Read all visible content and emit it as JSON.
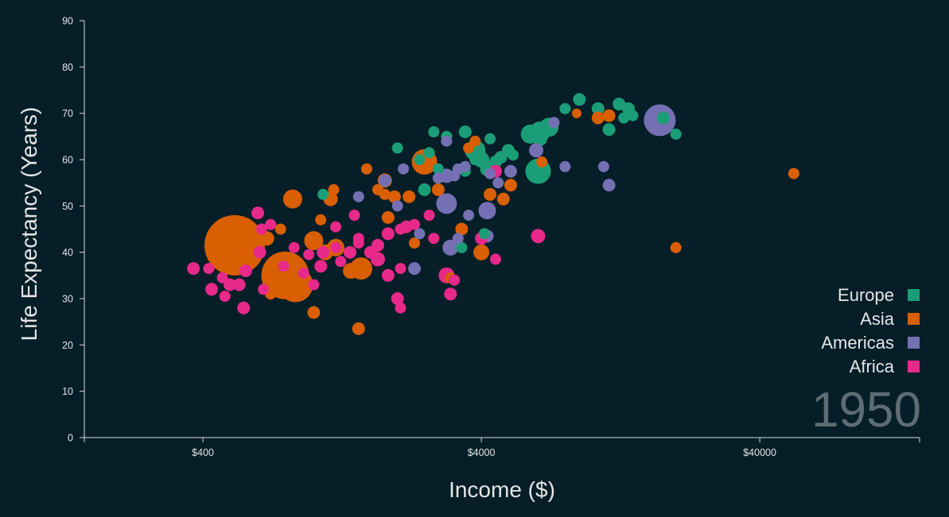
{
  "chart_data": {
    "type": "scatter",
    "xlabel": "Income ($)",
    "ylabel": "Life Expectancy (Years)",
    "xscale": "log",
    "xlim": [
      150,
      150000
    ],
    "ylim": [
      0,
      90
    ],
    "x_ticks": [
      400,
      4000,
      40000
    ],
    "x_tick_labels": [
      "$400",
      "$4000",
      "$40000"
    ],
    "y_ticks": [
      0,
      10,
      20,
      30,
      40,
      50,
      60,
      70,
      80,
      90
    ],
    "year": "1950",
    "legend_position": "bottom-right",
    "grid": false,
    "series": [
      {
        "name": "Europe",
        "color": "#1b9e77",
        "points": [
          [
            9000,
            73,
            8
          ],
          [
            10500,
            71,
            8
          ],
          [
            12500,
            72,
            8
          ],
          [
            13500,
            71,
            8
          ],
          [
            13000,
            69,
            7
          ],
          [
            14000,
            69.5,
            7
          ],
          [
            11500,
            66.5,
            8
          ],
          [
            8000,
            71,
            7
          ],
          [
            18000,
            69,
            8
          ],
          [
            20000,
            65.5,
            7
          ],
          [
            6500,
            66,
            13
          ],
          [
            7000,
            67,
            12
          ],
          [
            6000,
            65.5,
            12
          ],
          [
            6500,
            64.5,
            9
          ],
          [
            5000,
            62,
            8
          ],
          [
            5200,
            61,
            7
          ],
          [
            4700,
            60.5,
            8
          ],
          [
            4500,
            59.5,
            8
          ],
          [
            4200,
            58,
            9
          ],
          [
            6400,
            57.5,
            16
          ],
          [
            2700,
            66,
            7
          ],
          [
            3000,
            65,
            7
          ],
          [
            3500,
            66,
            8
          ],
          [
            3800,
            62,
            13
          ],
          [
            4000,
            60,
            10
          ],
          [
            4300,
            64.5,
            7
          ],
          [
            2000,
            62.5,
            7
          ],
          [
            2600,
            61.5,
            7
          ],
          [
            2400,
            60,
            7
          ],
          [
            2800,
            58,
            7
          ],
          [
            3500,
            57.5,
            7
          ],
          [
            3800,
            60,
            7
          ],
          [
            1080,
            52.5,
            7
          ],
          [
            2500,
            53.5,
            8
          ],
          [
            3400,
            41,
            7
          ],
          [
            4100,
            44,
            7
          ]
        ]
      },
      {
        "name": "Asia",
        "color": "#d95f02",
        "points": [
          [
            520,
            41.5,
            38
          ],
          [
            790,
            35,
            30
          ],
          [
            860,
            33,
            22
          ],
          [
            2500,
            59.5,
            16
          ],
          [
            1480,
            36.5,
            14
          ],
          [
            840,
            51.5,
            12
          ],
          [
            1000,
            42.5,
            12
          ],
          [
            1200,
            41,
            11
          ],
          [
            1100,
            40,
            10
          ],
          [
            1360,
            36,
            10
          ],
          [
            1800,
            55.5,
            9
          ],
          [
            1150,
            51.5,
            9
          ],
          [
            680,
            43,
            9
          ],
          [
            1950,
            52,
            8
          ],
          [
            1850,
            47.5,
            8
          ],
          [
            2200,
            52,
            8
          ],
          [
            2800,
            53.5,
            8
          ],
          [
            3400,
            45,
            8
          ],
          [
            4000,
            40,
            10
          ],
          [
            4300,
            52.5,
            8
          ],
          [
            4800,
            51.5,
            8
          ],
          [
            5100,
            54.5,
            8
          ],
          [
            6600,
            59.5,
            7
          ],
          [
            10500,
            69,
            8
          ],
          [
            11500,
            69.5,
            8
          ],
          [
            3600,
            62.5,
            7
          ],
          [
            3800,
            64,
            7
          ],
          [
            1700,
            53.5,
            7
          ],
          [
            1800,
            52.5,
            7
          ],
          [
            1550,
            58,
            7
          ],
          [
            1060,
            47,
            7
          ],
          [
            1180,
            53.5,
            7
          ],
          [
            900,
            31,
            7
          ],
          [
            1000,
            27,
            8
          ],
          [
            1450,
            23.5,
            8
          ],
          [
            2300,
            42,
            7
          ],
          [
            3100,
            34.5,
            7
          ],
          [
            53000,
            57,
            7
          ],
          [
            20000,
            41,
            7
          ],
          [
            8800,
            70,
            6
          ],
          [
            700,
            31,
            7
          ],
          [
            760,
            45,
            7
          ]
        ]
      },
      {
        "name": "Americas",
        "color": "#7570b3",
        "points": [
          [
            17500,
            68.5,
            20
          ],
          [
            3000,
            50.5,
            13
          ],
          [
            4200,
            49,
            11
          ],
          [
            3100,
            41,
            10
          ],
          [
            8000,
            58.5,
            7
          ],
          [
            6300,
            62,
            9
          ],
          [
            5100,
            57.5,
            8
          ],
          [
            4600,
            55,
            7
          ],
          [
            4300,
            57,
            7
          ],
          [
            3500,
            58.5,
            7
          ],
          [
            3300,
            58,
            7
          ],
          [
            3200,
            56.5,
            7
          ],
          [
            3000,
            56.5,
            9
          ],
          [
            2800,
            56,
            7
          ],
          [
            11000,
            58.5,
            7
          ],
          [
            11500,
            54.5,
            8
          ],
          [
            7300,
            68,
            7
          ],
          [
            3000,
            64,
            7
          ],
          [
            2300,
            36.5,
            8
          ],
          [
            2000,
            50,
            7
          ],
          [
            2400,
            44,
            7
          ],
          [
            3600,
            48,
            7
          ],
          [
            2100,
            58,
            7
          ],
          [
            3300,
            43,
            7
          ],
          [
            4200,
            43.5,
            8
          ],
          [
            1800,
            55.5,
            8
          ],
          [
            1450,
            52,
            7
          ]
        ]
      },
      {
        "name": "Africa",
        "color": "#e7298a",
        "points": [
          [
            370,
            36.5,
            8
          ],
          [
            430,
            32,
            8
          ],
          [
            480,
            30.5,
            7
          ],
          [
            470,
            34.5,
            7
          ],
          [
            500,
            33,
            8
          ],
          [
            540,
            33,
            8
          ],
          [
            560,
            28,
            8
          ],
          [
            570,
            36,
            8
          ],
          [
            650,
            45,
            7
          ],
          [
            700,
            46,
            7
          ],
          [
            640,
            40,
            8
          ],
          [
            630,
            48.5,
            8
          ],
          [
            960,
            39.5,
            7
          ],
          [
            1080,
            40,
            8
          ],
          [
            1060,
            37,
            8
          ],
          [
            1000,
            33,
            7
          ],
          [
            1200,
            41,
            7
          ],
          [
            1250,
            38,
            7
          ],
          [
            1350,
            40,
            8
          ],
          [
            1450,
            43,
            7
          ],
          [
            1600,
            40,
            8
          ],
          [
            1700,
            41.5,
            8
          ],
          [
            1700,
            38.5,
            9
          ],
          [
            1850,
            44,
            8
          ],
          [
            1850,
            35,
            8
          ],
          [
            2000,
            30,
            8
          ],
          [
            2050,
            28,
            7
          ],
          [
            2050,
            36.5,
            7
          ],
          [
            2150,
            45.5,
            8
          ],
          [
            2050,
            45,
            7
          ],
          [
            2300,
            46,
            7
          ],
          [
            2600,
            48,
            7
          ],
          [
            2700,
            43,
            7
          ],
          [
            3000,
            35,
            10
          ],
          [
            3200,
            34,
            7
          ],
          [
            3100,
            31,
            8
          ],
          [
            4000,
            43,
            8
          ],
          [
            4500,
            57.5,
            8
          ],
          [
            4500,
            38.5,
            7
          ],
          [
            6400,
            43.5,
            9
          ],
          [
            1400,
            48,
            7
          ],
          [
            850,
            41,
            7
          ],
          [
            920,
            35.5,
            7
          ],
          [
            780,
            37,
            7
          ],
          [
            660,
            32,
            7
          ],
          [
            420,
            36.5,
            7
          ],
          [
            1200,
            45.5,
            7
          ],
          [
            1450,
            42,
            7
          ]
        ]
      }
    ]
  }
}
